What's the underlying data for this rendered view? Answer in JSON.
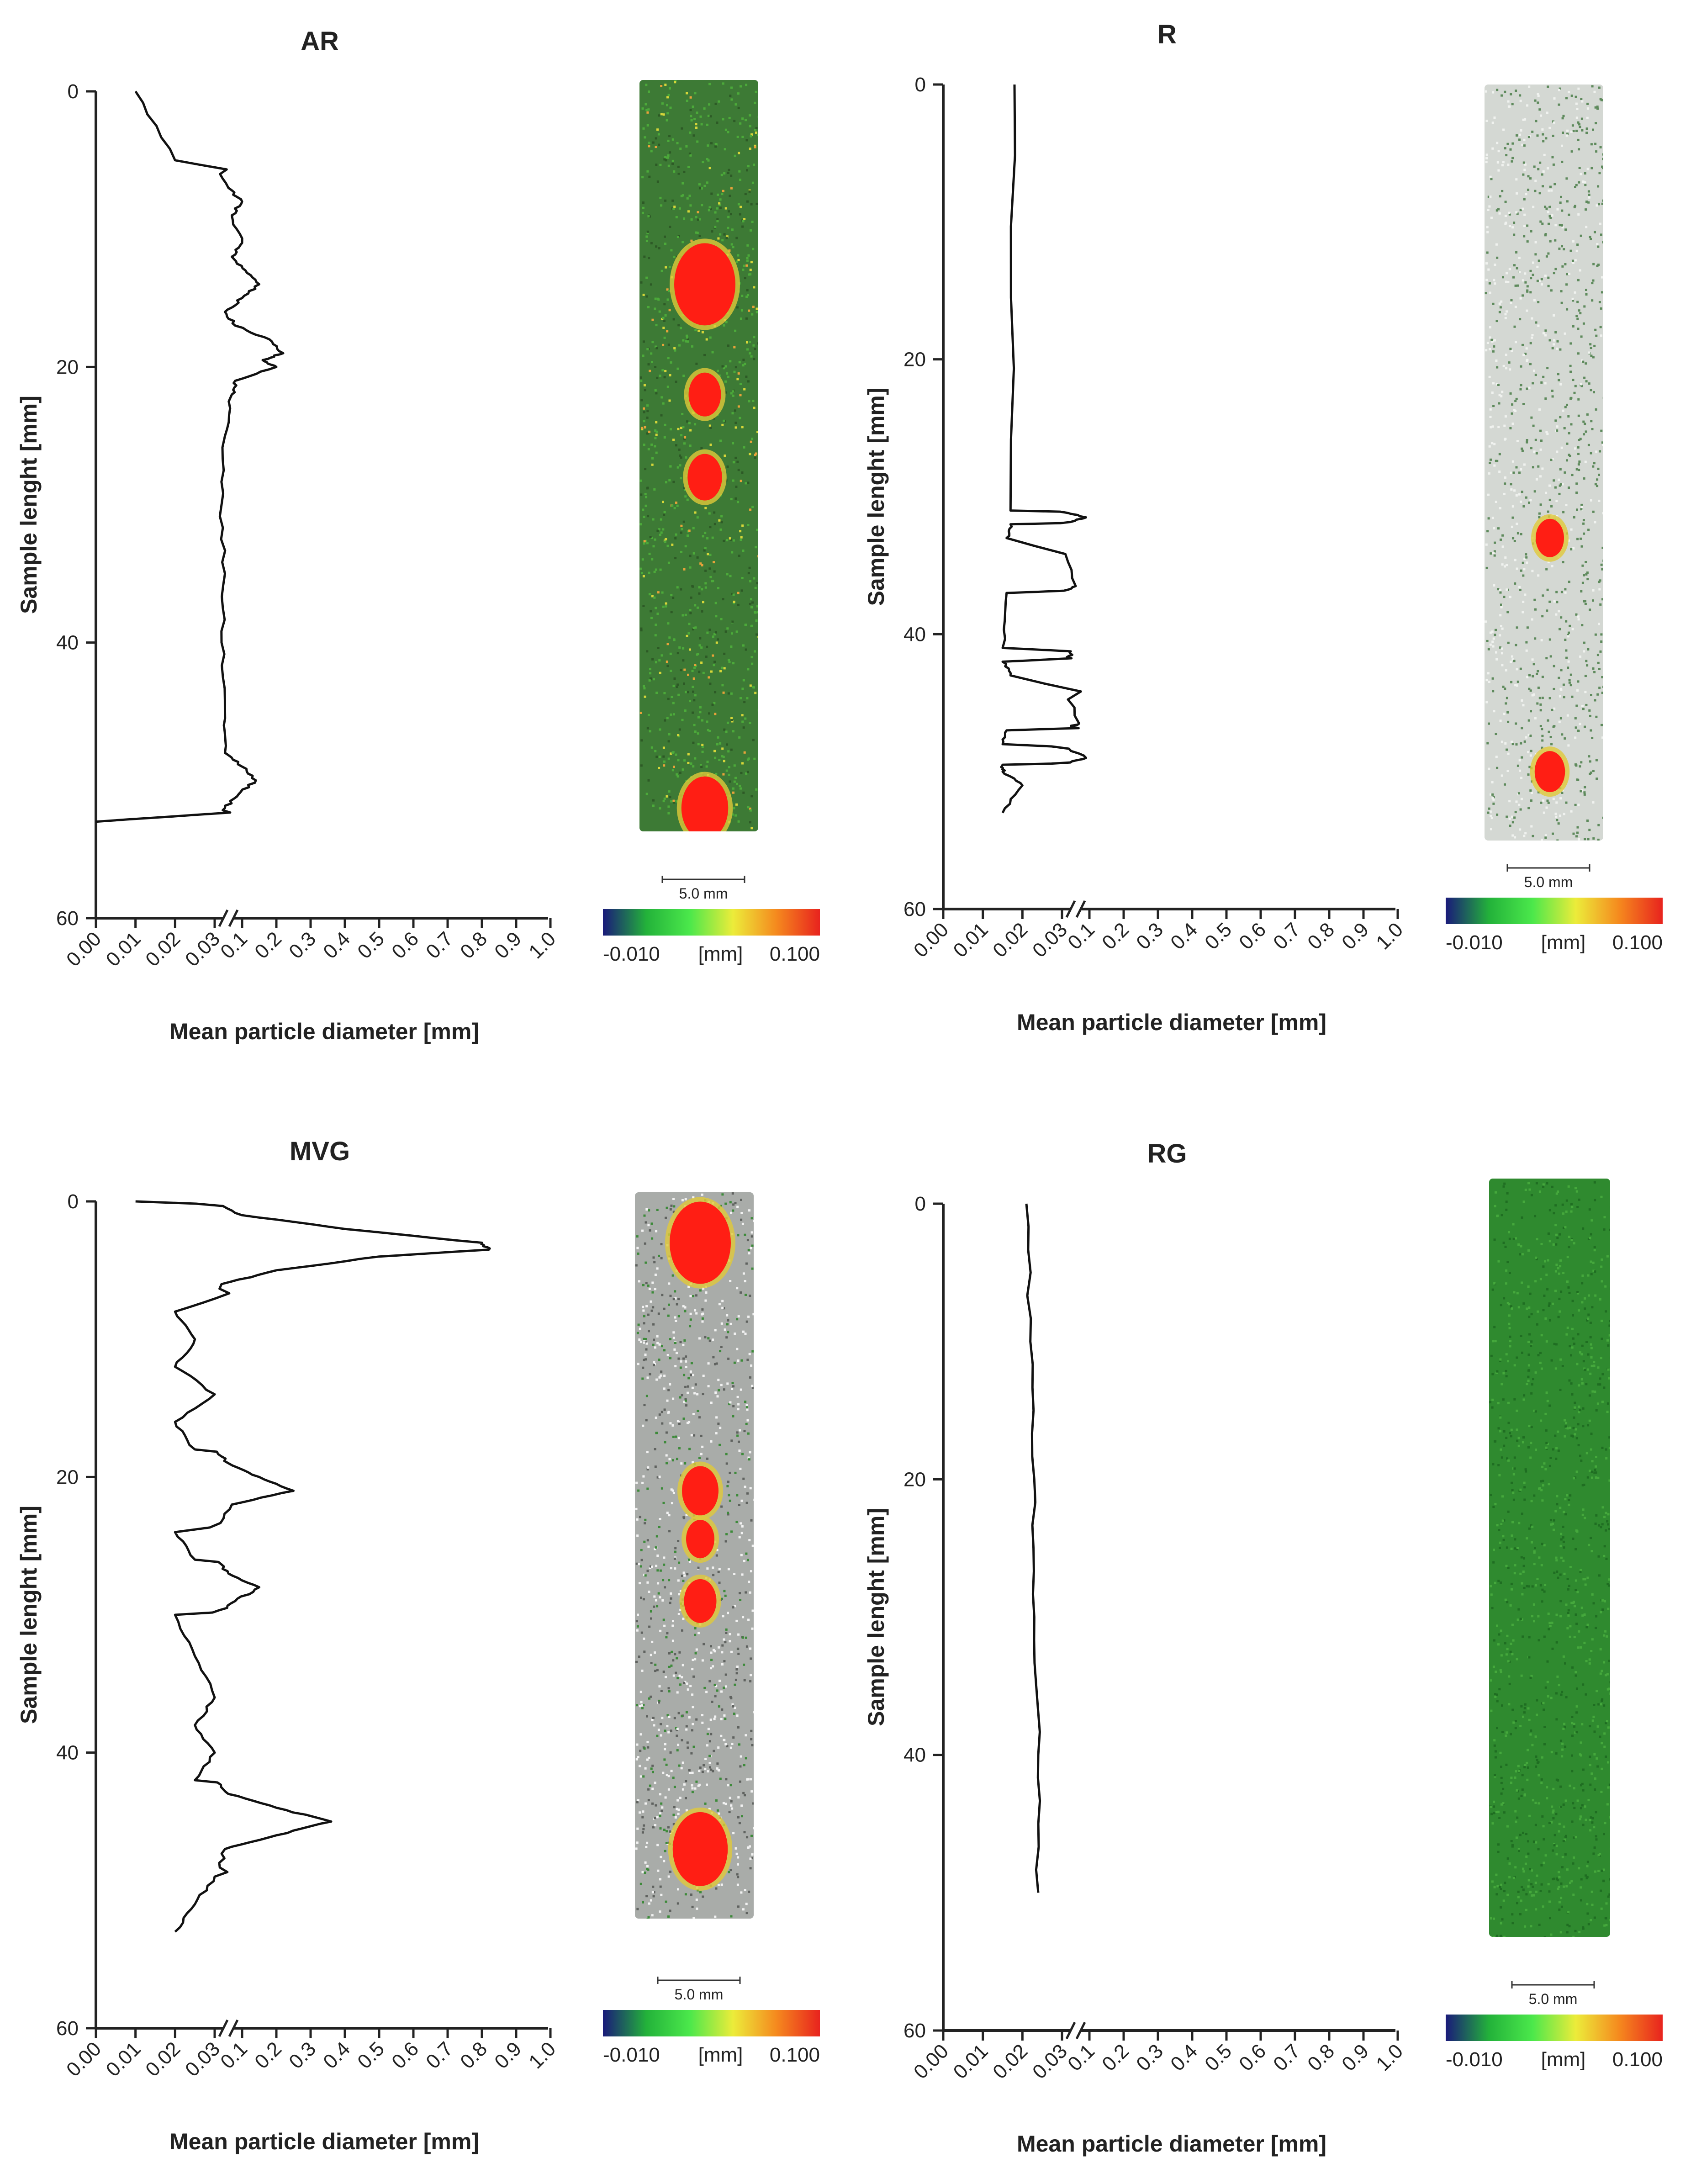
{
  "chart_data": [
    {
      "type": "line",
      "title": "AR",
      "xlabel": "Mean particle diameter [mm]",
      "ylabel": "Sample lenght [mm]",
      "y_ticks": [
        "0",
        "20",
        "40",
        "60"
      ],
      "ylim": [
        0,
        60
      ],
      "x_ticks": [
        "0.00",
        "0.01",
        "0.02",
        "0.03",
        "0.1",
        "0.2",
        "0.3",
        "0.4",
        "0.5",
        "0.6",
        "0.7",
        "0.8",
        "0.9",
        "1.0"
      ],
      "x_axis_break": "between 0.03 and 0.1",
      "profile": {
        "depth": [
          0,
          5,
          7,
          8,
          9,
          11,
          12,
          13,
          14,
          15,
          16,
          17,
          18,
          19,
          19.5,
          20,
          21,
          22,
          25,
          30,
          35,
          40,
          45,
          48,
          49,
          50,
          51,
          52,
          53
        ],
        "diameter": [
          0.01,
          0.02,
          0.06,
          0.1,
          0.07,
          0.1,
          0.07,
          0.11,
          0.15,
          0.1,
          0.05,
          0.08,
          0.18,
          0.22,
          0.16,
          0.2,
          0.08,
          0.07,
          0.05,
          0.04,
          0.05,
          0.04,
          0.05,
          0.05,
          0.1,
          0.14,
          0.09,
          0.05,
          0.0
        ]
      },
      "scale_bar": "5.0 mm",
      "colorbar": {
        "min": "-0.010",
        "unit": "[mm]",
        "max": "0.100",
        "colors": [
          "#1a1a7a",
          "#23b23a",
          "#4be84b",
          "#ecec3a",
          "#f5891e",
          "#e8231e"
        ]
      },
      "pores": [
        {
          "depth": 14,
          "size": 1.0
        },
        {
          "depth": 22,
          "size": 0.3
        },
        {
          "depth": 28,
          "size": 0.35
        },
        {
          "depth": 52,
          "size": 0.65
        }
      ]
    },
    {
      "type": "line",
      "title": "R",
      "xlabel": "Mean particle diameter [mm]",
      "ylabel": "Sample lenght [mm]",
      "y_ticks": [
        "0",
        "20",
        "40",
        "60"
      ],
      "ylim": [
        0,
        60
      ],
      "x_ticks": [
        "0.00",
        "0.01",
        "0.02",
        "0.03",
        "0.1",
        "0.2",
        "0.3",
        "0.4",
        "0.5",
        "0.6",
        "0.7",
        "0.8",
        "0.9",
        "1.0"
      ],
      "x_axis_break": "between 0.03 and 0.1",
      "profile": {
        "depth": [
          0,
          31,
          31.5,
          32,
          33,
          36.5,
          37,
          41,
          41.5,
          42,
          43,
          46.5,
          47,
          48,
          49,
          49.5,
          50,
          51,
          53
        ],
        "diameter": [
          0.018,
          0.017,
          0.09,
          0.017,
          0.016,
          0.06,
          0.016,
          0.015,
          0.05,
          0.015,
          0.017,
          0.07,
          0.016,
          0.015,
          0.09,
          0.015,
          0.015,
          0.02,
          0.015
        ]
      },
      "scale_bar": "5.0 mm",
      "colorbar": {
        "min": "-0.010",
        "unit": "[mm]",
        "max": "0.100",
        "colors": [
          "#1a1a7a",
          "#23b23a",
          "#4be84b",
          "#ecec3a",
          "#f5891e",
          "#e8231e"
        ]
      },
      "pores": [
        {
          "depth": 33,
          "size": 0.2
        },
        {
          "depth": 50,
          "size": 0.25
        }
      ]
    },
    {
      "type": "line",
      "title": "MVG",
      "xlabel": "Mean particle diameter [mm]",
      "ylabel": "Sample lenght [mm]",
      "y_ticks": [
        "0",
        "20",
        "40",
        "60"
      ],
      "ylim": [
        0,
        60
      ],
      "x_ticks": [
        "0.00",
        "0.01",
        "0.02",
        "0.03",
        "0.1",
        "0.2",
        "0.3",
        "0.4",
        "0.5",
        "0.6",
        "0.7",
        "0.8",
        "0.9",
        "1.0"
      ],
      "x_axis_break": "between 0.03 and 0.1",
      "profile": {
        "depth": [
          0,
          1,
          2,
          3,
          3.5,
          4,
          5,
          6,
          8,
          10,
          12,
          14,
          16,
          18,
          19,
          20,
          21,
          22,
          24,
          26,
          27,
          28,
          29,
          30,
          33,
          36,
          38,
          40,
          42,
          43,
          44,
          45,
          46,
          47,
          49,
          51,
          53
        ],
        "diameter": [
          0.01,
          0.1,
          0.4,
          0.8,
          0.82,
          0.5,
          0.2,
          0.04,
          0.02,
          0.025,
          0.02,
          0.03,
          0.02,
          0.025,
          0.06,
          0.15,
          0.25,
          0.07,
          0.02,
          0.025,
          0.06,
          0.15,
          0.08,
          0.02,
          0.025,
          0.03,
          0.025,
          0.03,
          0.025,
          0.06,
          0.2,
          0.36,
          0.2,
          0.05,
          0.03,
          0.025,
          0.02
        ]
      },
      "scale_bar": "5.0 mm",
      "colorbar": {
        "min": "-0.010",
        "unit": "[mm]",
        "max": "0.100",
        "colors": [
          "#1a1a7a",
          "#23b23a",
          "#4be84b",
          "#ecec3a",
          "#f5891e",
          "#e8231e"
        ]
      },
      "pores": [
        {
          "depth": 3,
          "size": 1.0
        },
        {
          "depth": 21,
          "size": 0.4
        },
        {
          "depth": 24.5,
          "size": 0.2
        },
        {
          "depth": 29,
          "size": 0.3
        },
        {
          "depth": 47,
          "size": 0.85
        }
      ]
    },
    {
      "type": "line",
      "title": "RG",
      "xlabel": "Mean particle diameter [mm]",
      "ylabel": "Sample lenght [mm]",
      "y_ticks": [
        "0",
        "20",
        "40",
        "60"
      ],
      "ylim": [
        0,
        60
      ],
      "x_ticks": [
        "0.00",
        "0.01",
        "0.02",
        "0.03",
        "0.1",
        "0.2",
        "0.3",
        "0.4",
        "0.5",
        "0.6",
        "0.7",
        "0.8",
        "0.9",
        "1.0"
      ],
      "x_axis_break": "between 0.03 and 0.1",
      "profile": {
        "depth": [
          0,
          10,
          20,
          30,
          40,
          50
        ],
        "diameter": [
          0.021,
          0.022,
          0.023,
          0.023,
          0.024,
          0.024
        ]
      },
      "scale_bar": "5.0 mm",
      "colorbar": {
        "min": "-0.010",
        "unit": "[mm]",
        "max": "0.100",
        "colors": [
          "#1a1a7a",
          "#23b23a",
          "#4be84b",
          "#ecec3a",
          "#f5891e",
          "#e8231e"
        ]
      },
      "pores": []
    }
  ]
}
